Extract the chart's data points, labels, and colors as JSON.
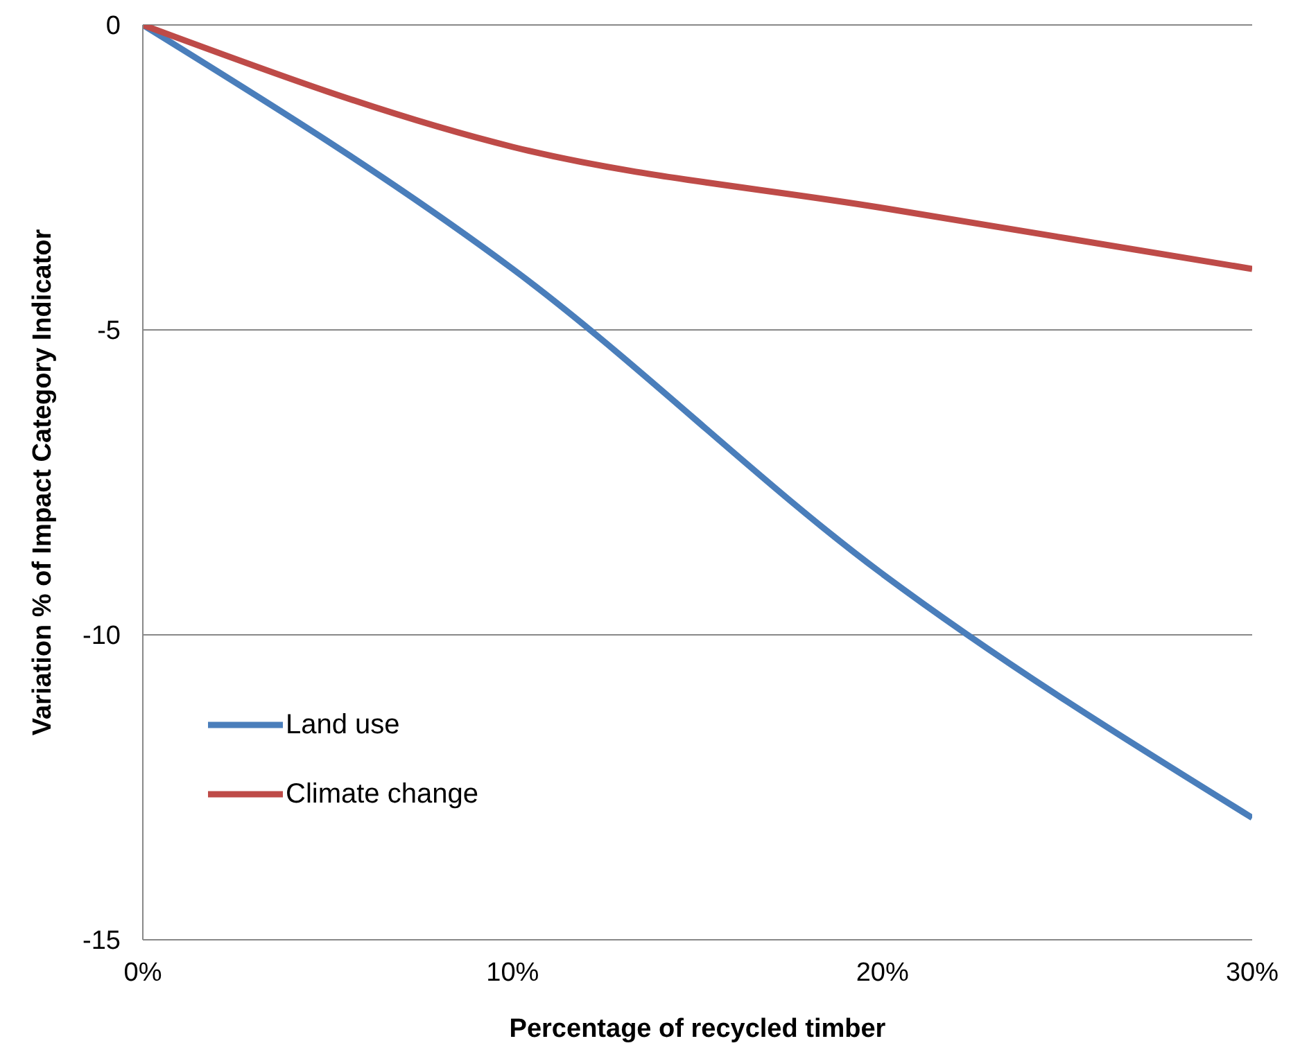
{
  "chart_data": {
    "type": "line",
    "xlabel": "Percentage of recycled timber",
    "ylabel": "Variation % of Impact Category Indicator",
    "x": [
      0,
      10,
      20,
      30
    ],
    "series": [
      {
        "name": "Land use",
        "color": "#4a7ebb",
        "values": [
          0,
          -4,
          -9,
          -13
        ]
      },
      {
        "name": "Climate change",
        "color": "#be4b48",
        "values": [
          0,
          -2,
          -3,
          -4
        ]
      }
    ],
    "xlim": [
      0,
      30
    ],
    "xticks": [
      {
        "value": 0,
        "label": "0%"
      },
      {
        "value": 10,
        "label": "10%"
      },
      {
        "value": 20,
        "label": "20%"
      },
      {
        "value": 30,
        "label": "30%"
      }
    ],
    "ylim": [
      -15,
      0
    ],
    "yticks": [
      -15,
      -10,
      -5,
      0
    ],
    "grid": "y",
    "legend": "bottom left",
    "marker": "none",
    "line_style": "solid"
  }
}
